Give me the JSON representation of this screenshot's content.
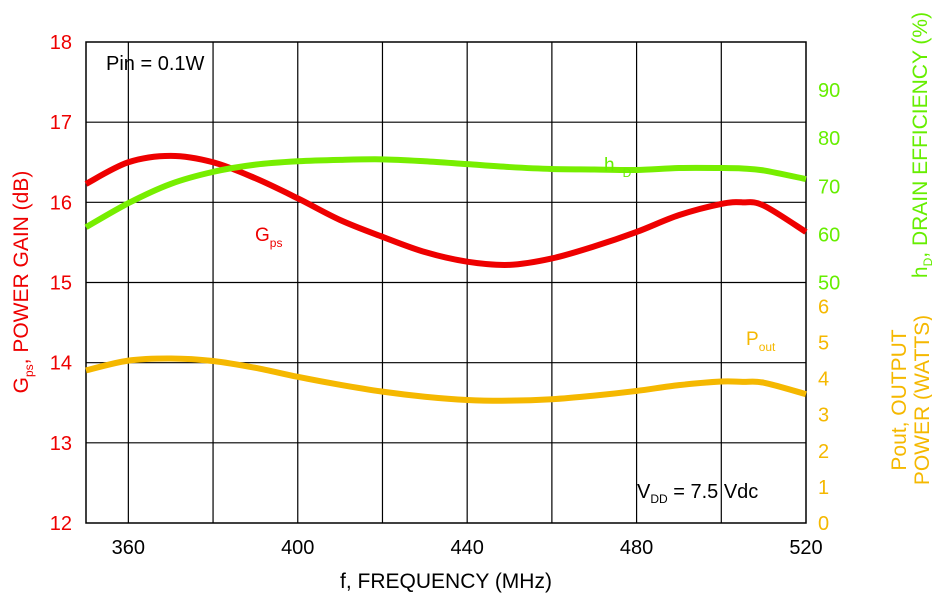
{
  "chart_data": {
    "type": "line",
    "x": [
      350,
      360,
      370,
      380,
      390,
      400,
      410,
      420,
      430,
      440,
      450,
      460,
      470,
      480,
      490,
      500,
      505,
      510,
      520
    ],
    "xlabel": "f, FREQUENCY (MHz)",
    "xlim": [
      350,
      520
    ],
    "x_ticks": [
      360,
      400,
      440,
      480,
      520
    ],
    "grid": true,
    "axes": {
      "left": {
        "label_main": "G",
        "label_sub": "ps",
        "label_rest": ", POWER GAIN (dB)",
        "ylim": [
          12,
          18
        ],
        "ticks": [
          12,
          13,
          14,
          15,
          16,
          17,
          18
        ],
        "color": "#ee0000"
      },
      "right_upper": {
        "label_main": "h",
        "label_sub": "D",
        "label_rest": ", DRAIN EFFICIENCY (%)",
        "ylim": [
          0,
          100
        ],
        "ticks": [
          50,
          60,
          70,
          80,
          90
        ],
        "color": "#66ee00"
      },
      "right_lower": {
        "label_line1": "Pout, OUTPUT",
        "label_line2": "POWER (WATTS)",
        "ylim": [
          0,
          13.33
        ],
        "ticks": [
          0,
          1,
          2,
          3,
          4,
          5,
          6
        ],
        "color": "#f5b800"
      }
    },
    "series": [
      {
        "name": "Gps",
        "label_main": "G",
        "label_sub": "ps",
        "axis": "left",
        "color": "#ee0000",
        "values": [
          16.23,
          16.5,
          16.58,
          16.5,
          16.3,
          16.05,
          15.78,
          15.57,
          15.38,
          15.26,
          15.22,
          15.3,
          15.45,
          15.63,
          15.84,
          15.98,
          16.0,
          15.96,
          15.63
        ]
      },
      {
        "name": "hD",
        "label_main": "h",
        "label_sub": "D",
        "axis": "right_upper",
        "color": "#77ee00",
        "values": [
          61.5,
          66.5,
          70.5,
          73.0,
          74.5,
          75.2,
          75.5,
          75.6,
          75.2,
          74.6,
          74.0,
          73.6,
          73.5,
          73.4,
          73.8,
          73.8,
          73.7,
          73.3,
          71.5
        ]
      },
      {
        "name": "Pout",
        "label_main": "P",
        "label_sub": "out",
        "axis": "right_lower",
        "color": "#f5b800",
        "values": [
          4.23,
          4.5,
          4.56,
          4.49,
          4.3,
          4.05,
          3.83,
          3.64,
          3.5,
          3.41,
          3.39,
          3.43,
          3.53,
          3.66,
          3.82,
          3.92,
          3.91,
          3.89,
          3.57
        ]
      }
    ],
    "annotations": {
      "pin": "Pin = 0.1W",
      "vdd_main": "V",
      "vdd_sub": "DD",
      "vdd_rest": " = 7.5 Vdc"
    }
  }
}
